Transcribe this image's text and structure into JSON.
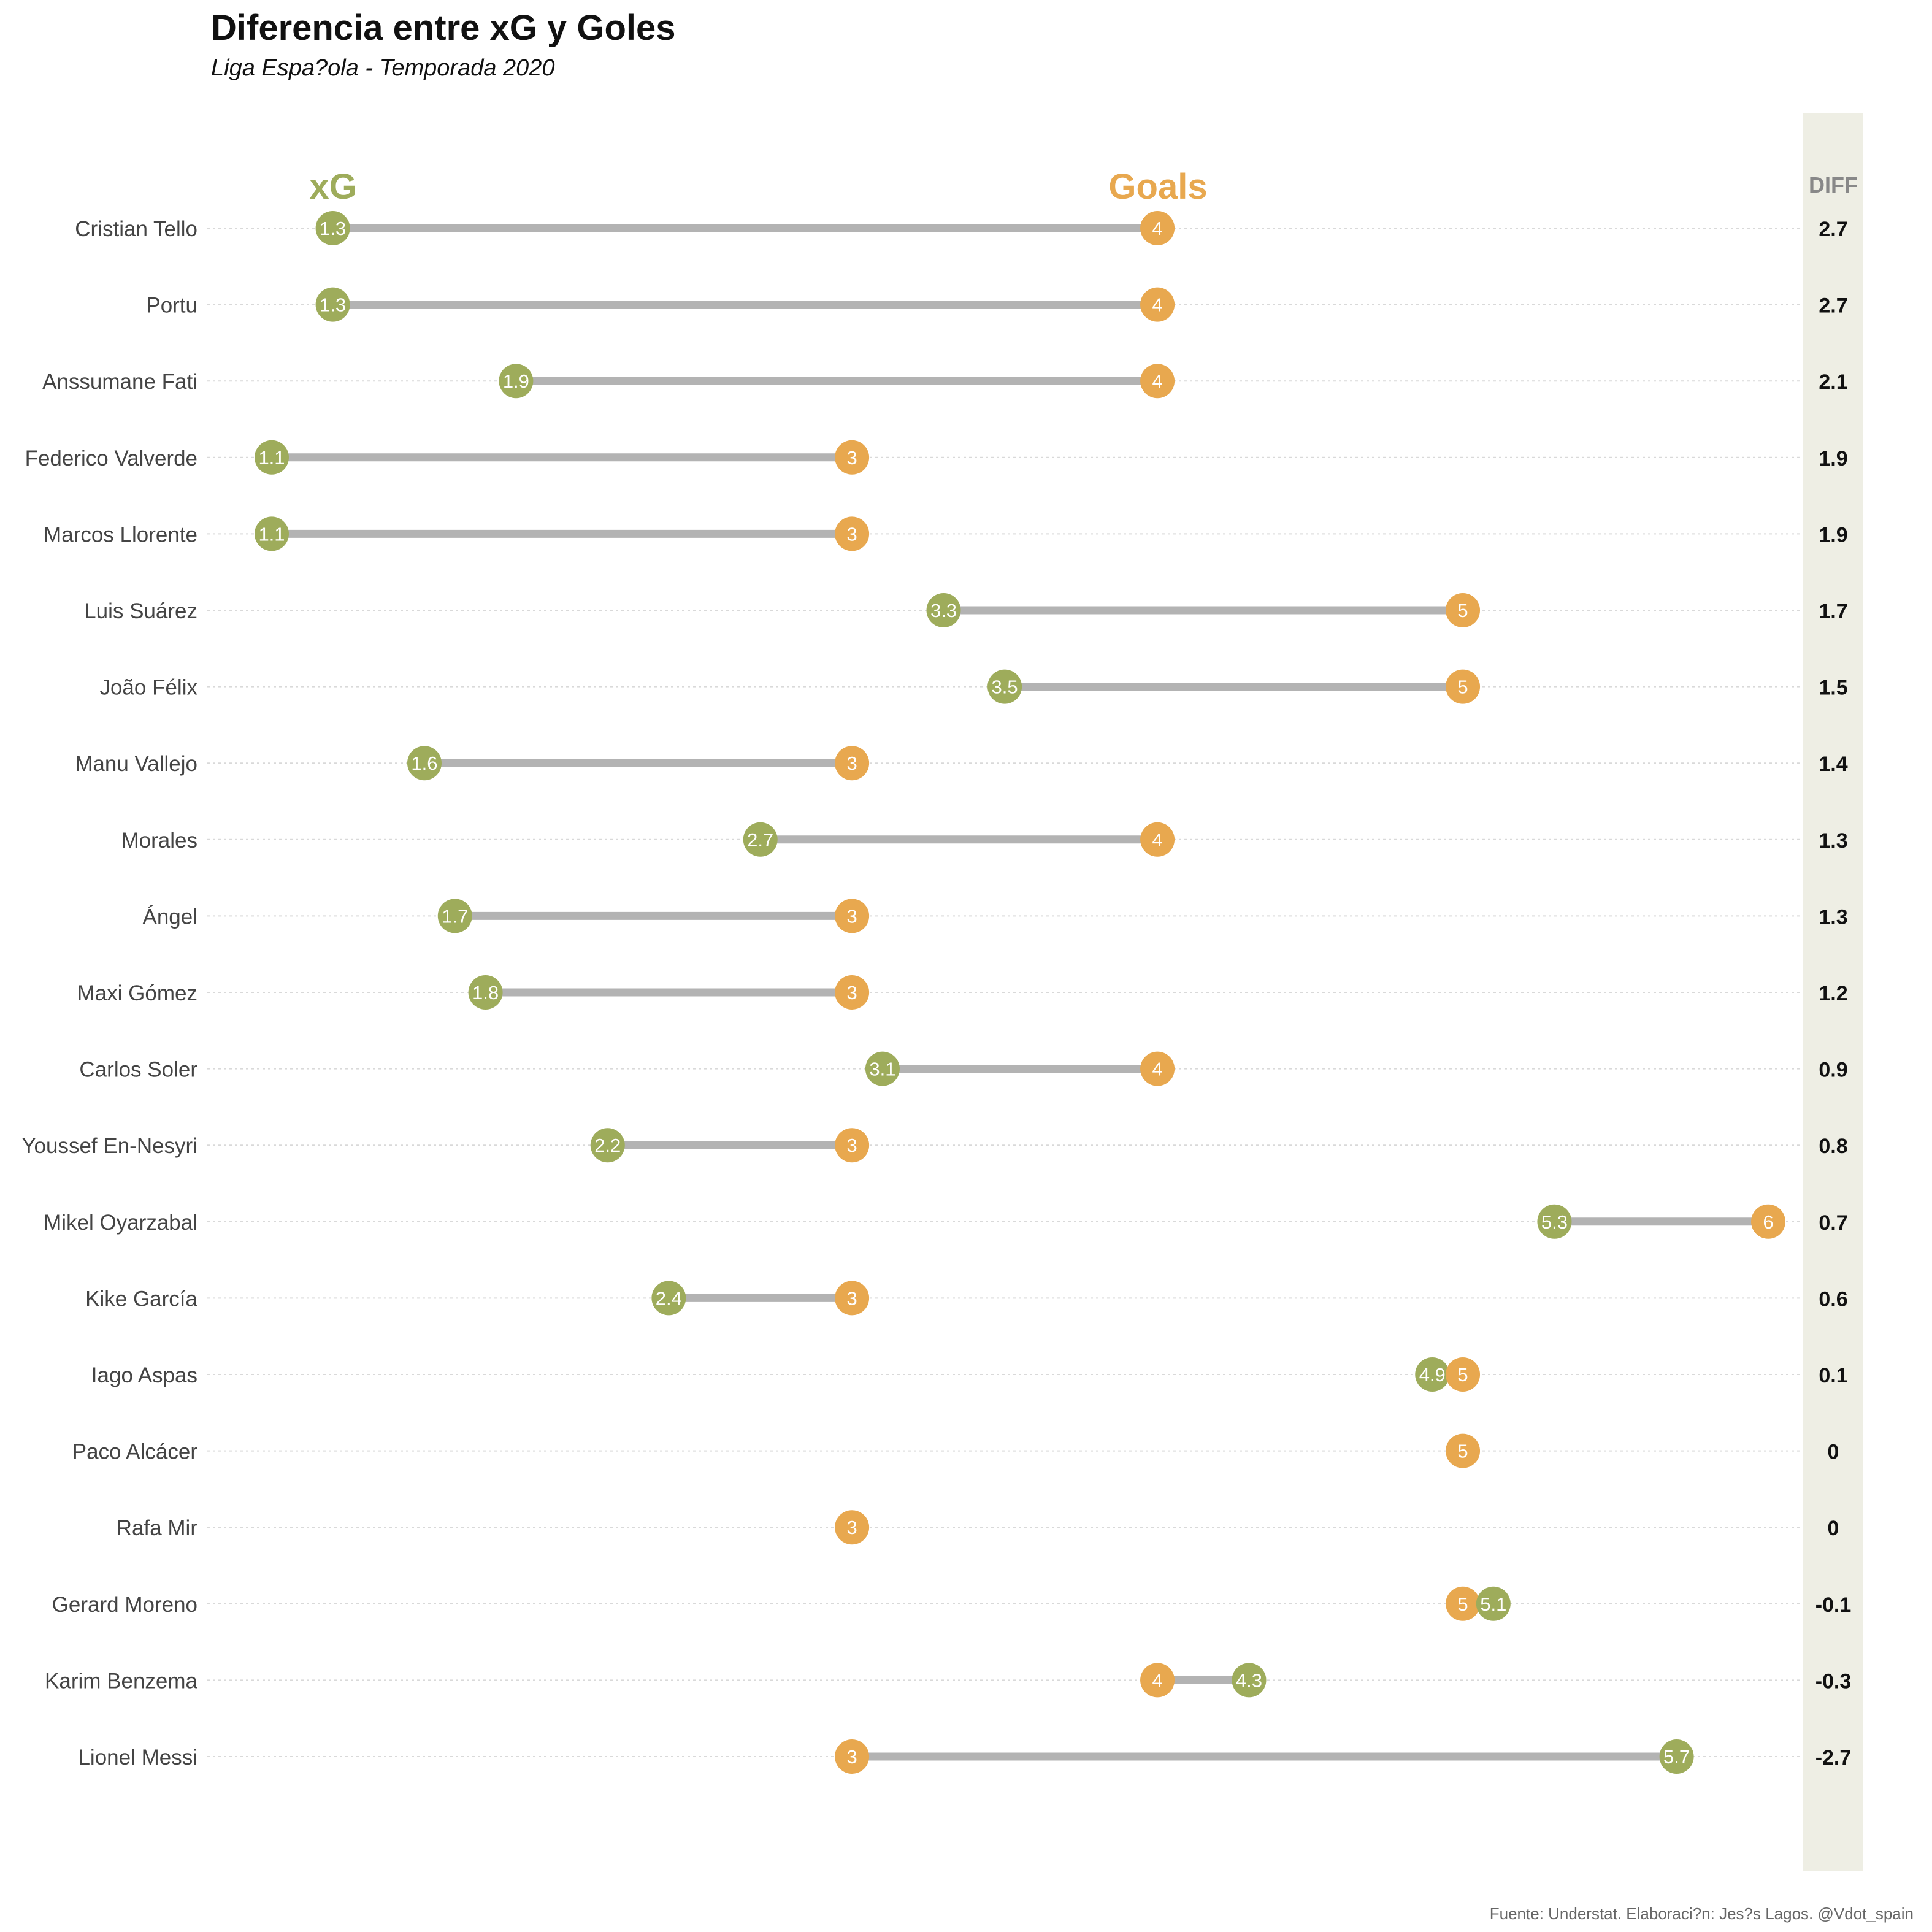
{
  "header": {
    "title": "Diferencia entre xG y Goles",
    "subtitle": "Liga Espa?ola - Temporada 2020"
  },
  "caption": "Fuente: Understat. Elaboraci?n: Jes?s Lagos. @Vdot_spain",
  "legend": {
    "xg_label": "xG",
    "goals_label": "Goals",
    "diff_label": "DIFF"
  },
  "colors": {
    "xg": "#9eac5b",
    "goals": "#e8a84f",
    "connector": "#b3b3b3",
    "diff_panel": "#eeeee4",
    "diff_header": "#888888",
    "player_label": "#444444",
    "gridline": "#d9d9d9"
  },
  "chart_data": {
    "type": "dumbbell",
    "x_range": [
      1.1,
      6
    ],
    "grid": "horizontal dotted",
    "players": [
      "Cristian Tello",
      "Portu",
      "Anssumane Fati",
      "Federico Valverde",
      "Marcos Llorente",
      "Luis Suárez",
      "João Félix",
      "Manu Vallejo",
      "Morales",
      "Ángel",
      "Maxi Gómez",
      "Carlos Soler",
      "Youssef En-Nesyri",
      "Mikel Oyarzabal",
      "Kike García",
      "Iago Aspas",
      "Paco Alcácer",
      "Rafa Mir",
      "Gerard Moreno",
      "Karim Benzema",
      "Lionel Messi"
    ],
    "series": [
      {
        "name": "xG",
        "values": [
          1.3,
          1.3,
          1.9,
          1.1,
          1.1,
          3.3,
          3.5,
          1.6,
          2.7,
          1.7,
          1.8,
          3.1,
          2.2,
          5.3,
          2.4,
          4.9,
          5,
          3,
          5.1,
          4.3,
          5.7
        ]
      },
      {
        "name": "Goals",
        "values": [
          4,
          4,
          4,
          3,
          3,
          5,
          5,
          3,
          4,
          3,
          3,
          4,
          3,
          6,
          3,
          5,
          5,
          3,
          5,
          4,
          3
        ]
      }
    ],
    "diff_labels": [
      "2.7",
      "2.7",
      "2.1",
      "1.9",
      "1.9",
      "1.7",
      "1.5",
      "1.4",
      "1.3",
      "1.3",
      "1.2",
      "0.9",
      "0.8",
      "0.7",
      "0.6",
      "0.1",
      "0",
      "0",
      "-0.1",
      "-0.3",
      "-2.7"
    ]
  }
}
